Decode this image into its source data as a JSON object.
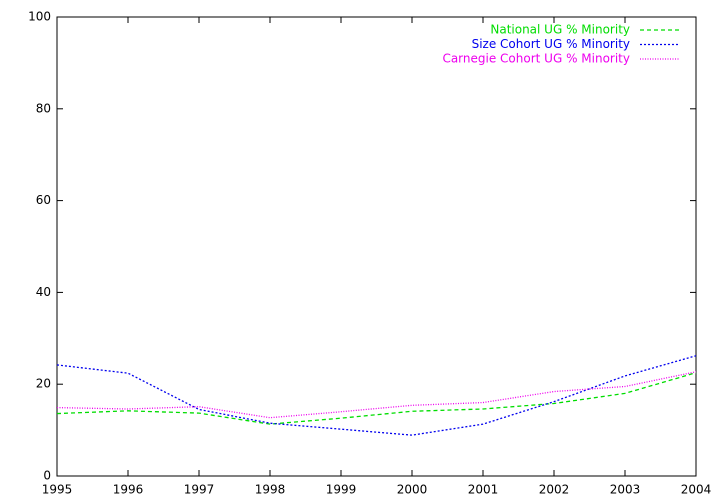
{
  "chart_data": {
    "type": "line",
    "x": [
      1995,
      1996,
      1997,
      1998,
      1999,
      2000,
      2001,
      2002,
      2003,
      2004
    ],
    "series": [
      {
        "name": "National UG % Minority",
        "color": "#00dd00",
        "line_style": "dashed",
        "values": [
          13.6,
          14.2,
          13.7,
          11.3,
          12.6,
          14.1,
          14.6,
          15.8,
          18.0,
          22.5
        ]
      },
      {
        "name": "Size Cohort UG % Minority",
        "color": "#0000ee",
        "line_style": "dotted",
        "values": [
          24.2,
          22.4,
          14.5,
          11.5,
          10.2,
          8.9,
          11.3,
          16.2,
          21.8,
          26.2
        ]
      },
      {
        "name": "Carnegie Cohort UG % Minority",
        "color": "#ee00ee",
        "line_style": "fine-dotted",
        "values": [
          14.9,
          14.6,
          15.1,
          12.7,
          14.0,
          15.4,
          16.0,
          18.4,
          19.5,
          22.7
        ]
      }
    ],
    "xlim": [
      1995,
      2004
    ],
    "xticks": [
      1995,
      1996,
      1997,
      1998,
      1999,
      2000,
      2001,
      2002,
      2003,
      2004
    ],
    "ylim": [
      0,
      100
    ],
    "yticks": [
      0,
      20,
      40,
      60,
      80,
      100
    ],
    "grid": false,
    "legend": "top-right"
  }
}
